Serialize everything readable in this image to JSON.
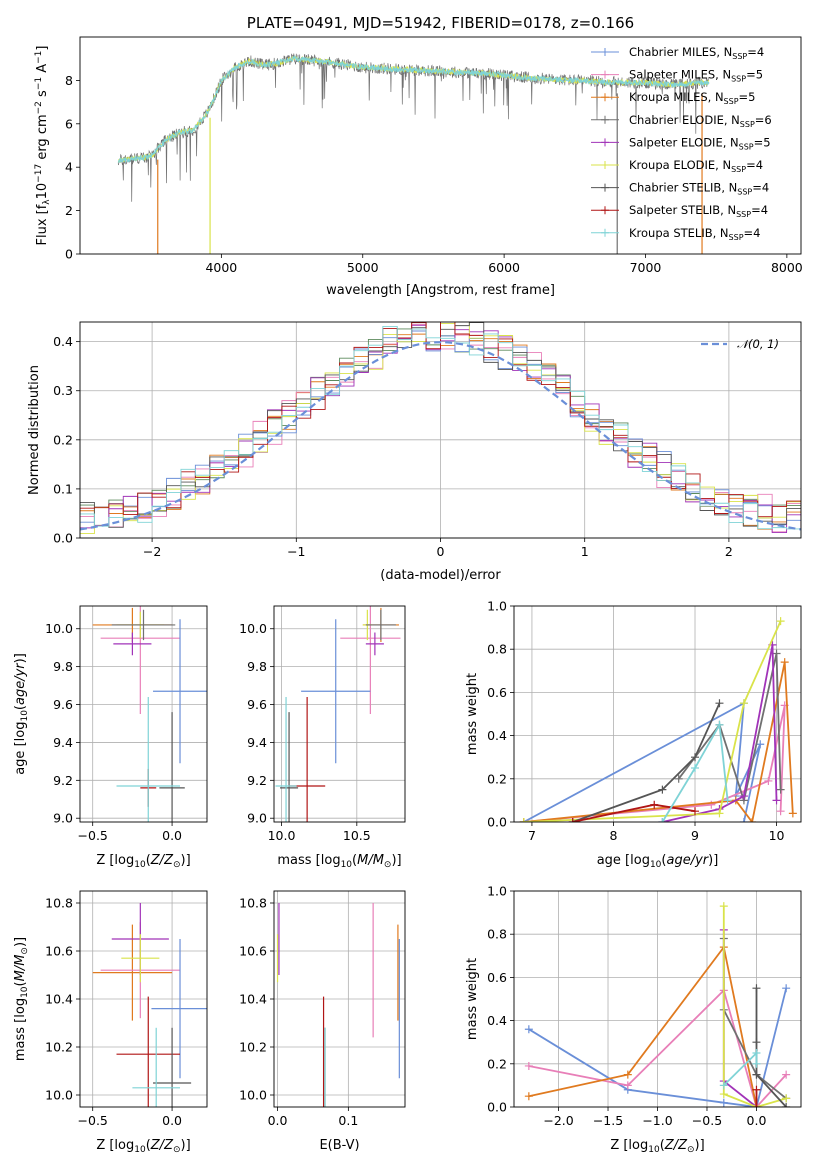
{
  "colors": {
    "Chabrier MILES": "#6a8fd8",
    "Salpeter MILES": "#e87fb8",
    "Kroupa MILES": "#e07a1f",
    "Chabrier ELODIE": "#707070",
    "Salpeter ELODIE": "#a133b8",
    "Kroupa ELODIE": "#d9e34a",
    "Chabrier STELIB": "#555555",
    "Salpeter STELIB": "#b01515",
    "Kroupa STELIB": "#7fd3d6",
    "normal": "#6a8fd8",
    "elodie_line": "#5c8a5c"
  },
  "chart_data": [
    {
      "id": "spectrum",
      "type": "line",
      "title": "PLATE=0491, MJD=51942, FIBERID=0178, z=0.166",
      "xlabel": "wavelength [Angstrom, rest frame]",
      "ylabel": "Flux [f",
      "ylabel_parts": [
        "Flux [f",
        "λ",
        "10",
        "−17",
        " erg cm",
        "−2",
        " s",
        "−1",
        " A",
        "−1",
        "]"
      ],
      "xlim": [
        3000,
        8100
      ],
      "ylim": [
        0,
        10
      ],
      "xticks": [
        4000,
        5000,
        6000,
        7000,
        8000
      ],
      "yticks": [
        0,
        2,
        4,
        6,
        8
      ],
      "grid": false,
      "legend_position": "top-right",
      "legend": [
        {
          "name": "Chabrier MILES",
          "sub": "SSP",
          "value": "4",
          "color_key": "Chabrier MILES"
        },
        {
          "name": "Salpeter MILES",
          "sub": "SSP",
          "value": "5",
          "color_key": "Salpeter MILES"
        },
        {
          "name": "Kroupa MILES",
          "sub": "SSP",
          "value": "5",
          "color_key": "Kroupa MILES"
        },
        {
          "name": "Chabrier ELODIE",
          "sub": "SSP",
          "value": "6",
          "color_key": "Chabrier ELODIE"
        },
        {
          "name": "Salpeter ELODIE",
          "sub": "SSP",
          "value": "5",
          "color_key": "Salpeter ELODIE"
        },
        {
          "name": "Kroupa ELODIE",
          "sub": "SSP",
          "value": "4",
          "color_key": "Kroupa ELODIE"
        },
        {
          "name": "Chabrier STELIB",
          "sub": "SSP",
          "value": "4",
          "color_key": "Chabrier STELIB"
        },
        {
          "name": "Salpeter STELIB",
          "sub": "SSP",
          "value": "4",
          "color_key": "Salpeter STELIB"
        },
        {
          "name": "Kroupa STELIB",
          "sub": "SSP",
          "value": "4",
          "color_key": "Kroupa STELIB"
        }
      ],
      "continuum": {
        "x": [
          3270,
          3400,
          3500,
          3600,
          3700,
          3800,
          3900,
          3950,
          4000,
          4100,
          4200,
          4300,
          4400,
          4500,
          4700,
          5000,
          5300,
          5600,
          5900,
          6200,
          6500,
          6800,
          7000,
          7200,
          7400
        ],
        "y": [
          4.3,
          4.4,
          4.5,
          5.2,
          5.6,
          5.7,
          6.5,
          7.2,
          8.0,
          8.6,
          8.9,
          8.7,
          8.8,
          9.0,
          8.9,
          8.6,
          8.5,
          8.4,
          8.3,
          8.1,
          8.0,
          7.9,
          7.9,
          7.8,
          7.9
        ]
      },
      "absorption_features": [
        {
          "x": 3550,
          "depth_to": 0,
          "color_key": "Kroupa MILES"
        },
        {
          "x": 3920,
          "depth_to": 0,
          "color_key": "Kroupa ELODIE"
        },
        {
          "x": 6800,
          "depth_to": 0,
          "color_key": "Chabrier ELODIE"
        },
        {
          "x": 7400,
          "depth_to": 0,
          "color_key": "Kroupa MILES"
        }
      ]
    },
    {
      "id": "residuals",
      "type": "bar",
      "xlabel": "(data-model)/error",
      "ylabel": "Normed distribution",
      "xlim": [
        -2.5,
        2.5
      ],
      "ylim": [
        0,
        0.44
      ],
      "xticks": [
        -2,
        -1,
        0,
        1,
        2
      ],
      "xtick_labels": [
        "−2",
        "−1",
        "0",
        "1",
        "2"
      ],
      "yticks": [
        0.0,
        0.1,
        0.2,
        0.3,
        0.4
      ],
      "ytick_labels": [
        "0.0",
        "0.1",
        "0.2",
        "0.3",
        "0.4"
      ],
      "grid": true,
      "legend_position": "top-right",
      "legend": [
        {
          "name": "N(0,1)",
          "color_key": "normal",
          "style": "dashed"
        }
      ],
      "bin_width": 0.1,
      "bin_start": -2.5
    },
    {
      "id": "age-vs-Z",
      "type": "scatter",
      "xlabel": "Z [log10(Z/Z⊙)]",
      "ylabel": "age  [log10(age/yr)]",
      "xlim": [
        -0.58,
        0.22
      ],
      "ylim": [
        8.98,
        10.12
      ],
      "xticks": [
        -0.5,
        0.0
      ],
      "xtick_labels": [
        "−0.5",
        "0.0"
      ],
      "yticks": [
        9.0,
        9.2,
        9.4,
        9.6,
        9.8,
        10.0
      ],
      "ytick_labels": [
        "9.0",
        "9.2",
        "9.4",
        "9.6",
        "9.8",
        "10.0"
      ],
      "grid": true,
      "points": [
        {
          "color_key": "Kroupa MILES",
          "x": -0.25,
          "xerr": 0.25,
          "y": 10.02,
          "yerr": 0.09
        },
        {
          "color_key": "Salpeter MILES",
          "x": -0.2,
          "xerr": 0.25,
          "y": 9.95,
          "yerr": 0.4
        },
        {
          "color_key": "Salpeter ELODIE",
          "x": -0.25,
          "xerr": 0.12,
          "y": 9.92,
          "yerr": 0.06
        },
        {
          "color_key": "Kroupa ELODIE",
          "x": -0.2,
          "xerr": 0.15,
          "y": 10.02,
          "yerr": 0.07
        },
        {
          "color_key": "Chabrier ELODIE",
          "x": -0.18,
          "xerr": 0.2,
          "y": 10.02,
          "yerr": 0.08
        },
        {
          "color_key": "Chabrier MILES",
          "x": 0.05,
          "xerr": 0.17,
          "y": 9.67,
          "yerr": 0.38
        },
        {
          "color_key": "Chabrier STELIB",
          "x": 0.0,
          "xerr": 0.08,
          "y": 9.16,
          "yerr": 0.4
        },
        {
          "color_key": "Salpeter STELIB",
          "x": -0.15,
          "xerr": 0.05,
          "y": 9.16,
          "yerr": 0.1
        },
        {
          "color_key": "Kroupa STELIB",
          "x": -0.15,
          "xerr": 0.2,
          "y": 9.17,
          "yerr": 0.47
        }
      ]
    },
    {
      "id": "age-vs-mass",
      "type": "scatter",
      "xlabel": "mass [log10(M/M⊙)]",
      "xlim": [
        9.95,
        10.82
      ],
      "ylim": [
        8.98,
        10.12
      ],
      "xticks": [
        10.0,
        10.5
      ],
      "xtick_labels": [
        "10.0",
        "10.5"
      ],
      "yticks": [
        9.0,
        9.2,
        9.4,
        9.6,
        9.8,
        10.0
      ],
      "ytick_labels": [
        "9.0",
        "9.2",
        "9.4",
        "9.6",
        "9.8",
        "10.0"
      ],
      "grid": true,
      "points": [
        {
          "color_key": "Kroupa MILES",
          "x": 10.66,
          "xerr": 0.12,
          "y": 10.02,
          "yerr": 0.09
        },
        {
          "color_key": "Salpeter MILES",
          "x": 10.59,
          "xerr": 0.2,
          "y": 9.95,
          "yerr": 0.4
        },
        {
          "color_key": "Salpeter ELODIE",
          "x": 10.62,
          "xerr": 0.06,
          "y": 9.92,
          "yerr": 0.06
        },
        {
          "color_key": "Kroupa ELODIE",
          "x": 10.57,
          "xerr": 0.03,
          "y": 10.02,
          "yerr": 0.08
        },
        {
          "color_key": "Chabrier ELODIE",
          "x": 10.66,
          "xerr": 0.1,
          "y": 10.02,
          "yerr": 0.08
        },
        {
          "color_key": "Chabrier MILES",
          "x": 10.36,
          "xerr": 0.23,
          "y": 9.67,
          "yerr": 0.38
        },
        {
          "color_key": "Chabrier STELIB",
          "x": 10.05,
          "xerr": 0.06,
          "y": 9.16,
          "yerr": 0.4
        },
        {
          "color_key": "Salpeter STELIB",
          "x": 10.17,
          "xerr": 0.12,
          "y": 9.17,
          "yerr": 0.47
        },
        {
          "color_key": "Kroupa STELIB",
          "x": 10.03,
          "xerr": 0.07,
          "y": 9.17,
          "yerr": 0.47
        }
      ]
    },
    {
      "id": "mass-weight-vs-age",
      "type": "line",
      "xlabel": "age  [log10(age/yr)]",
      "ylabel": "mass weight",
      "xlim": [
        6.78,
        10.3
      ],
      "ylim": [
        0,
        1.0
      ],
      "xticks": [
        7,
        8,
        9,
        10
      ],
      "yticks": [
        0.0,
        0.2,
        0.4,
        0.6,
        0.8,
        1.0
      ],
      "ytick_labels": [
        "0.0",
        "0.2",
        "0.4",
        "0.6",
        "0.8",
        "1.0"
      ],
      "grid": true,
      "series": [
        {
          "color_key": "Chabrier MILES",
          "x": [
            6.9,
            9.6,
            9.5,
            9.8,
            9.6
          ],
          "y": [
            0.0,
            0.55,
            0.12,
            0.36,
            0.0
          ]
        },
        {
          "color_key": "Salpeter MILES",
          "x": [
            6.9,
            9.2,
            9.9,
            10.1,
            10.05
          ],
          "y": [
            0.0,
            0.08,
            0.19,
            0.54,
            0.05
          ]
        },
        {
          "color_key": "Kroupa MILES",
          "x": [
            6.9,
            9.5,
            9.7,
            10.1,
            10.2
          ],
          "y": [
            0.0,
            0.1,
            0.0,
            0.74,
            0.04
          ]
        },
        {
          "color_key": "Chabrier ELODIE",
          "x": [
            8.8,
            9.3,
            9.6,
            10.0,
            10.05
          ],
          "y": [
            0.2,
            0.45,
            0.1,
            0.78,
            0.15
          ]
        },
        {
          "color_key": "Salpeter ELODIE",
          "x": [
            8.6,
            9.3,
            9.6,
            9.95,
            10.0
          ],
          "y": [
            0.0,
            0.06,
            0.12,
            0.82,
            0.1
          ]
        },
        {
          "color_key": "Kroupa ELODIE",
          "x": [
            6.9,
            9.3,
            9.6,
            10.05
          ],
          "y": [
            0.0,
            0.04,
            0.55,
            0.93
          ]
        },
        {
          "color_key": "Chabrier STELIB",
          "x": [
            7.5,
            8.6,
            9.0,
            9.3
          ],
          "y": [
            0.0,
            0.15,
            0.3,
            0.55
          ]
        },
        {
          "color_key": "Salpeter STELIB",
          "x": [
            7.5,
            8.5,
            9.0
          ],
          "y": [
            0.0,
            0.08,
            0.05
          ]
        },
        {
          "color_key": "Kroupa STELIB",
          "x": [
            8.6,
            9.0,
            9.3,
            9.4
          ],
          "y": [
            0.0,
            0.25,
            0.45,
            0.1
          ]
        }
      ]
    },
    {
      "id": "mass-vs-Z",
      "type": "scatter",
      "xlabel": "Z [log10(Z/Z⊙)]",
      "ylabel": "mass [log10(M/M⊙)]",
      "xlim": [
        -0.58,
        0.22
      ],
      "ylim": [
        9.95,
        10.85
      ],
      "xticks": [
        -0.5,
        0.0
      ],
      "xtick_labels": [
        "−0.5",
        "0.0"
      ],
      "yticks": [
        10.0,
        10.2,
        10.4,
        10.6,
        10.8
      ],
      "ytick_labels": [
        "10.0",
        "10.2",
        "10.4",
        "10.6",
        "10.8"
      ],
      "grid": true,
      "points": [
        {
          "color_key": "Kroupa MILES",
          "x": -0.25,
          "xerr": 0.25,
          "y": 10.51,
          "yerr": 0.2
        },
        {
          "color_key": "Salpeter MILES",
          "x": -0.2,
          "xerr": 0.25,
          "y": 10.52,
          "yerr": 0.2
        },
        {
          "color_key": "Salpeter ELODIE",
          "x": -0.2,
          "xerr": 0.18,
          "y": 10.65,
          "yerr": 0.15
        },
        {
          "color_key": "Kroupa ELODIE",
          "x": -0.2,
          "xerr": 0.12,
          "y": 10.57,
          "yerr": 0.1
        },
        {
          "color_key": "Chabrier MILES",
          "x": 0.05,
          "xerr": 0.18,
          "y": 10.36,
          "yerr": 0.29
        },
        {
          "color_key": "Salpeter STELIB",
          "x": -0.15,
          "xerr": 0.2,
          "y": 10.17,
          "yerr": 0.24
        },
        {
          "color_key": "Chabrier STELIB",
          "x": 0.0,
          "xerr": 0.12,
          "y": 10.05,
          "yerr": 0.23
        },
        {
          "color_key": "Kroupa STELIB",
          "x": -0.1,
          "xerr": 0.15,
          "y": 10.03,
          "yerr": 0.25
        }
      ]
    },
    {
      "id": "mass-vs-EBV",
      "type": "scatter",
      "xlabel": "E(B-V)",
      "xlim": [
        -0.005,
        0.18
      ],
      "ylim": [
        9.95,
        10.85
      ],
      "xticks": [
        0.0,
        0.1
      ],
      "xtick_labels": [
        "0.0",
        "0.1"
      ],
      "yticks": [
        10.0,
        10.2,
        10.4,
        10.6,
        10.8
      ],
      "ytick_labels": [
        "10.0",
        "10.2",
        "10.4",
        "10.6",
        "10.8"
      ],
      "grid": true,
      "points": [
        {
          "color_key": "Kroupa ELODIE",
          "x": 0.0,
          "y": 10.57,
          "yerr": 0.1
        },
        {
          "color_key": "Salpeter ELODIE",
          "x": 0.002,
          "y": 10.65,
          "yerr": 0.15
        },
        {
          "color_key": "Salpeter STELIB",
          "x": 0.065,
          "y": 10.17,
          "yerr": 0.24
        },
        {
          "color_key": "Chabrier STELIB",
          "x": 0.067,
          "y": 10.05,
          "yerr": 0.23
        },
        {
          "color_key": "Kroupa STELIB",
          "x": 0.067,
          "y": 10.03,
          "yerr": 0.25
        },
        {
          "color_key": "Salpeter MILES",
          "x": 0.135,
          "y": 10.52,
          "yerr": 0.28
        },
        {
          "color_key": "Kroupa MILES",
          "x": 0.17,
          "y": 10.51,
          "yerr": 0.2
        },
        {
          "color_key": "Chabrier MILES",
          "x": 0.172,
          "y": 10.36,
          "yerr": 0.29
        }
      ]
    },
    {
      "id": "mass-weight-vs-Z",
      "type": "line",
      "xlabel": "Z [log10(Z/Z⊙)]",
      "ylabel": "mass weight",
      "xlim": [
        -2.45,
        0.45
      ],
      "ylim": [
        0,
        1.0
      ],
      "xticks": [
        -2.0,
        -1.5,
        -1.0,
        -0.5,
        0.0
      ],
      "xtick_labels": [
        "−2.0",
        "−1.5",
        "−1.0",
        "−0.5",
        "0.0"
      ],
      "yticks": [
        0.0,
        0.2,
        0.4,
        0.6,
        0.8,
        1.0
      ],
      "ytick_labels": [
        "0.0",
        "0.2",
        "0.4",
        "0.6",
        "0.8",
        "1.0"
      ],
      "grid": true,
      "series": [
        {
          "color_key": "Chabrier MILES",
          "x": [
            -2.3,
            -1.3,
            -0.33,
            0.0,
            0.3
          ],
          "y": [
            0.36,
            0.08,
            0.02,
            0.0,
            0.55
          ]
        },
        {
          "color_key": "Salpeter MILES",
          "x": [
            -2.3,
            -1.3,
            -0.33,
            0.0,
            0.3
          ],
          "y": [
            0.19,
            0.1,
            0.54,
            0.0,
            0.15
          ]
        },
        {
          "color_key": "Kroupa MILES",
          "x": [
            -2.3,
            -1.3,
            -0.33,
            0.0
          ],
          "y": [
            0.05,
            0.15,
            0.74,
            0.0
          ]
        },
        {
          "color_key": "Chabrier ELODIE",
          "x": [
            -0.33,
            -0.33,
            0.0,
            0.3
          ],
          "y": [
            0.78,
            0.45,
            0.15,
            0.04
          ]
        },
        {
          "color_key": "Salpeter ELODIE",
          "x": [
            -0.33,
            -0.33,
            0.0
          ],
          "y": [
            0.82,
            0.12,
            0.0
          ]
        },
        {
          "color_key": "Kroupa ELODIE",
          "x": [
            -0.33,
            -0.33,
            0.0,
            0.3
          ],
          "y": [
            0.93,
            0.06,
            0.0,
            0.04
          ]
        },
        {
          "color_key": "Chabrier STELIB",
          "x": [
            0.0,
            0.0,
            0.0,
            0.3
          ],
          "y": [
            0.55,
            0.3,
            0.15,
            0.0
          ]
        },
        {
          "color_key": "Salpeter STELIB",
          "x": [
            0.0,
            0.0
          ],
          "y": [
            0.08,
            0.0
          ]
        },
        {
          "color_key": "Kroupa STELIB",
          "x": [
            -0.33,
            0.0,
            0.0
          ],
          "y": [
            0.1,
            0.25,
            0.2
          ]
        }
      ]
    }
  ]
}
